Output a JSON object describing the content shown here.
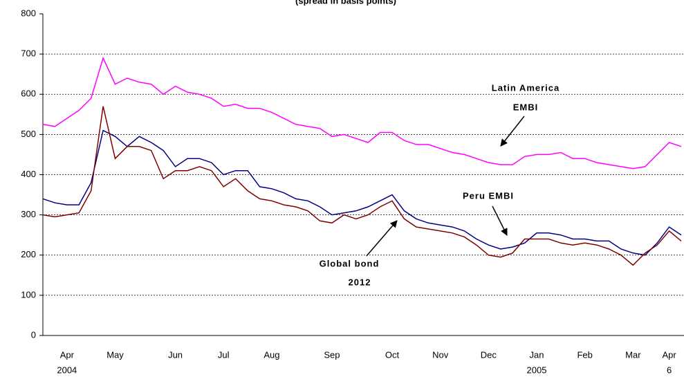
{
  "chart_data": {
    "type": "line",
    "title": "(spread in basis points)",
    "categories": [
      null,
      null,
      "Apr",
      null,
      null,
      null,
      "May",
      null,
      null,
      null,
      null,
      "Jun",
      null,
      null,
      null,
      "Jul",
      null,
      null,
      null,
      "Aug",
      null,
      null,
      null,
      null,
      "Sep",
      null,
      null,
      null,
      null,
      "Oct",
      null,
      null,
      null,
      "Nov",
      null,
      null,
      null,
      "Dec",
      null,
      null,
      null,
      "Jan",
      null,
      null,
      null,
      "Feb",
      null,
      null,
      null,
      "Mar",
      null,
      null,
      "Apr",
      null
    ],
    "category_years": [
      null,
      null,
      "2004",
      null,
      null,
      null,
      null,
      null,
      null,
      null,
      null,
      null,
      null,
      null,
      null,
      null,
      null,
      null,
      null,
      null,
      null,
      null,
      null,
      null,
      null,
      null,
      null,
      null,
      null,
      null,
      null,
      null,
      null,
      null,
      null,
      null,
      null,
      null,
      null,
      null,
      null,
      "2005",
      null,
      null,
      null,
      null,
      null,
      null,
      null,
      null,
      null,
      null,
      "6",
      null
    ],
    "series": [
      {
        "color": "#ff00ff",
        "values": [
          525,
          520,
          540,
          560,
          590,
          690,
          625,
          640,
          630,
          625,
          600,
          620,
          605,
          600,
          590,
          570,
          575,
          565,
          565,
          555,
          540,
          525,
          520,
          515,
          495,
          500,
          490,
          480,
          505,
          505,
          485,
          475,
          475,
          465,
          455,
          450,
          440,
          430,
          425,
          425,
          445,
          450,
          450,
          455,
          440,
          440,
          430,
          425,
          420,
          415,
          420,
          450,
          480,
          470
        ]
      },
      {
        "color": "#000080",
        "values": [
          340,
          330,
          325,
          325,
          380,
          510,
          495,
          470,
          495,
          480,
          460,
          420,
          440,
          440,
          430,
          400,
          410,
          410,
          370,
          365,
          355,
          340,
          335,
          320,
          300,
          305,
          310,
          320,
          335,
          350,
          310,
          290,
          280,
          275,
          270,
          260,
          240,
          225,
          215,
          220,
          230,
          255,
          255,
          250,
          240,
          240,
          235,
          235,
          215,
          205,
          200,
          230,
          270,
          250
        ]
      },
      {
        "color": "#800000",
        "values": [
          300,
          295,
          300,
          305,
          360,
          570,
          440,
          470,
          470,
          460,
          390,
          410,
          410,
          420,
          410,
          370,
          390,
          360,
          340,
          335,
          325,
          320,
          310,
          285,
          280,
          300,
          290,
          300,
          320,
          335,
          290,
          270,
          265,
          260,
          255,
          245,
          225,
          200,
          195,
          205,
          240,
          240,
          240,
          230,
          225,
          230,
          225,
          215,
          200,
          175,
          205,
          225,
          260,
          235
        ]
      }
    ],
    "annotations": [
      [
        "Latin America",
        "EMBI"
      ],
      [
        "Peru EMBI"
      ],
      [
        "Global bond",
        "2012"
      ]
    ],
    "ylim": [
      0,
      800
    ],
    "yticks": [
      0,
      100,
      200,
      300,
      400,
      500,
      600,
      700,
      800
    ],
    "grid": true
  }
}
